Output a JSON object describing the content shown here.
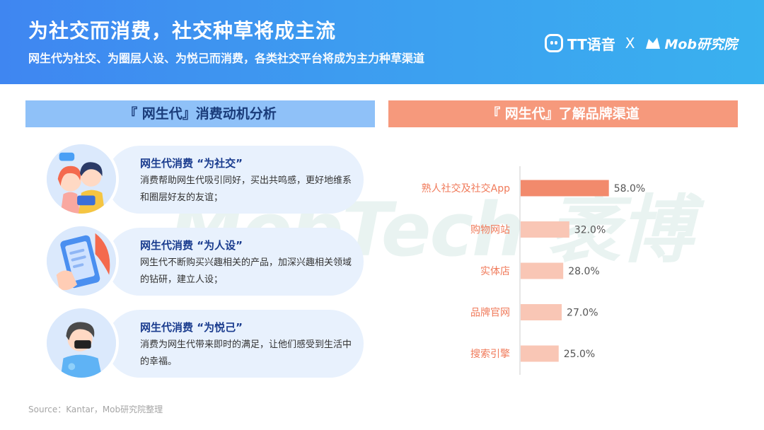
{
  "header": {
    "title": "为社交而消费，社交种草将成主流",
    "subtitle": "网生代为社交、为圈层人设、为悦己而消费，各类社交平台将成为主力种草渠道",
    "logo_tt_text": "TT语音",
    "logo_separator": "X",
    "logo_mob_text": "Mob研究院"
  },
  "left_panel": {
    "title": "『 网生代』消费动机分析",
    "cards": [
      {
        "title": "网生代消费 “为社交”",
        "desc": "消费帮助网生代吸引同好，买出共鸣感，更好地维系和圈层好友的友谊；",
        "icon": "social-friends-icon"
      },
      {
        "title": "网生代消费 “为人设”",
        "desc": "网生代不断购买兴趣相关的产品，加深兴趣相关领域的钻研，建立人设；",
        "icon": "phone-hand-icon"
      },
      {
        "title": "网生代消费 “为悦己”",
        "desc": "消费为网生代带来即时的满足，让他们感受到生活中的幸福。",
        "icon": "happy-person-icon"
      }
    ]
  },
  "right_panel": {
    "title": "『 网生代』了解品牌渠道"
  },
  "watermark": "MobTech 袤博",
  "chart_data": {
    "type": "bar",
    "orientation": "horizontal",
    "categories": [
      "熟人社交及社交App",
      "购物网站",
      "实体店",
      "品牌官网",
      "搜索引擎"
    ],
    "values": [
      58.0,
      32.0,
      28.0,
      27.0,
      25.0
    ],
    "value_labels": [
      "58.0%",
      "32.0%",
      "28.0%",
      "27.0%",
      "25.0%"
    ],
    "unit": "%",
    "xlim": [
      0,
      100
    ],
    "grid": false,
    "colors": {
      "highlight": "#f28a6c",
      "normal": "#f9c6b5",
      "label": "#f07a5a",
      "value_text": "#555555",
      "axis": "#cccccc"
    }
  },
  "colors": {
    "header_start": "#3f86f1",
    "header_end": "#39b1ef",
    "left_bar": "#8fc1f8",
    "right_bar": "#f6997c",
    "card_bg": "#e8f1fd",
    "card_title": "#1a3c8e"
  },
  "footer": {
    "source": "Source：Kantar，Mob研究院整理"
  }
}
